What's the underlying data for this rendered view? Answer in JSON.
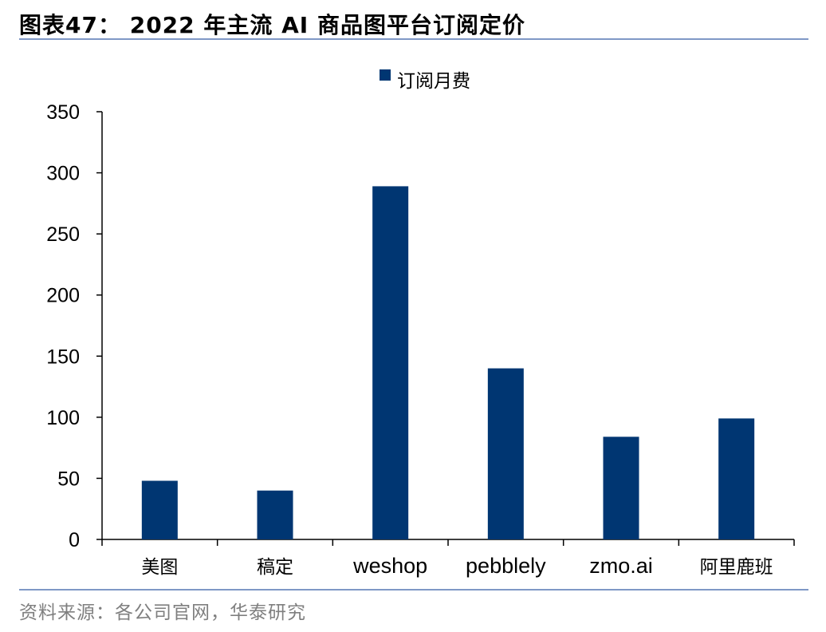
{
  "figure": {
    "title": "图表47： 2022 年主流 AI 商品图平台订阅定价",
    "source": "资料来源：各公司官网，华泰研究"
  },
  "colors": {
    "bar": "#003672",
    "rule": "#7f98c6",
    "axis": "#000000",
    "source_text": "#7f7f7f"
  },
  "chart_data": {
    "type": "bar",
    "title": "",
    "xlabel": "",
    "ylabel": "",
    "categories": [
      "美图",
      "稿定",
      "weshop",
      "pebblely",
      "zmo.ai",
      "阿里鹿班"
    ],
    "series": [
      {
        "name": "订阅月费",
        "values": [
          48,
          40,
          289,
          140,
          84,
          99
        ]
      }
    ],
    "ylim": [
      0,
      350
    ],
    "yticks": [
      0,
      50,
      100,
      150,
      200,
      250,
      300,
      350
    ],
    "grid": false,
    "legend": "top-center"
  }
}
